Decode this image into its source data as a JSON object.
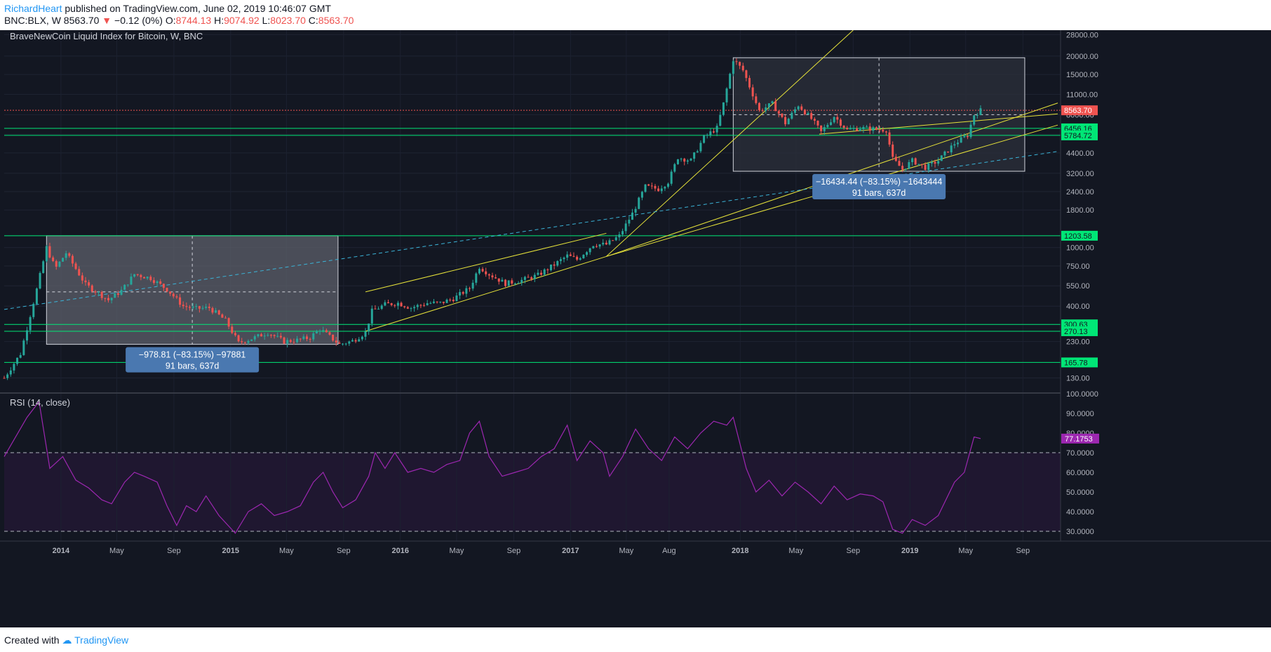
{
  "header": {
    "author": "RichardHeart",
    "published_text": "published on TradingView.com, June 02, 2019 10:46:07 GMT",
    "symbol": "BNC:BLX, W",
    "last": "8563.70",
    "change": "−0.12 (0%)",
    "o_label": "O:",
    "o_value": "8744.13",
    "h_label": "H:",
    "h_value": "9074.92",
    "l_label": "L:",
    "l_value": "8023.70",
    "c_label": "C:",
    "c_value": "8563.70"
  },
  "chart_title": "BraveNewCoin Liquid Index for Bitcoin, W, BNC",
  "rsi_title": "RSI (14, close)",
  "footer": {
    "created_with": "Created with",
    "brand": "TradingView"
  },
  "colors": {
    "background": "#131722",
    "up": "#26a69a",
    "down": "#ef5350",
    "support": "#00e676",
    "trend": "#e6e23a",
    "rsi": "#9c27b0",
    "dashed_trend": "#3bb4d8"
  },
  "chart_data": [
    {
      "type": "candlestick",
      "title": "BraveNewCoin Liquid Index for Bitcoin, W, BNC",
      "scale": "log",
      "x_range": [
        "2013-09-01",
        "2019-11-15"
      ],
      "y_ticks": [
        130,
        230,
        300,
        400,
        550,
        750,
        1000,
        1200,
        1800,
        2400,
        3200,
        4400,
        5900,
        8000,
        11000,
        15000,
        20000,
        28000
      ],
      "x_ticks": [
        "2014",
        "May",
        "Sep",
        "2015",
        "May",
        "Sep",
        "2016",
        "May",
        "Sep",
        "2017",
        "May",
        "Aug",
        "2018",
        "May",
        "Sep",
        "2019",
        "May",
        "Sep"
      ],
      "close_series": [
        [
          "2013-09-01",
          130
        ],
        [
          "2013-10-06",
          190
        ],
        [
          "2013-11-10",
          520
        ],
        [
          "2013-12-01",
          1000
        ],
        [
          "2013-12-20",
          720
        ],
        [
          "2014-01-12",
          920
        ],
        [
          "2014-02-23",
          560
        ],
        [
          "2014-03-23",
          490
        ],
        [
          "2014-04-13",
          440
        ],
        [
          "2014-05-11",
          510
        ],
        [
          "2014-06-08",
          660
        ],
        [
          "2014-07-13",
          620
        ],
        [
          "2014-08-17",
          520
        ],
        [
          "2014-09-21",
          400
        ],
        [
          "2014-10-19",
          385
        ],
        [
          "2014-11-16",
          390
        ],
        [
          "2014-12-21",
          320
        ],
        [
          "2015-01-18",
          225
        ],
        [
          "2015-02-22",
          245
        ],
        [
          "2015-03-22",
          265
        ],
        [
          "2015-04-26",
          230
        ],
        [
          "2015-05-24",
          235
        ],
        [
          "2015-06-21",
          245
        ],
        [
          "2015-07-12",
          280
        ],
        [
          "2015-08-23",
          220
        ],
        [
          "2015-09-20",
          232
        ],
        [
          "2015-10-18",
          265
        ],
        [
          "2015-11-01",
          370
        ],
        [
          "2015-11-29",
          410
        ],
        [
          "2015-12-27",
          420
        ],
        [
          "2016-01-24",
          390
        ],
        [
          "2016-02-28",
          420
        ],
        [
          "2016-03-27",
          420
        ],
        [
          "2016-04-24",
          450
        ],
        [
          "2016-05-29",
          530
        ],
        [
          "2016-06-19",
          740
        ],
        [
          "2016-07-10",
          660
        ],
        [
          "2016-08-14",
          570
        ],
        [
          "2016-09-18",
          600
        ],
        [
          "2016-10-23",
          650
        ],
        [
          "2016-11-20",
          740
        ],
        [
          "2016-12-25",
          880
        ],
        [
          "2017-01-15",
          830
        ],
        [
          "2017-02-19",
          1050
        ],
        [
          "2017-03-19",
          1050
        ],
        [
          "2017-04-16",
          1200
        ],
        [
          "2017-05-14",
          1700
        ],
        [
          "2017-06-11",
          2600
        ],
        [
          "2017-07-09",
          2500
        ],
        [
          "2017-07-30",
          2800
        ],
        [
          "2017-08-20",
          4100
        ],
        [
          "2017-09-17",
          3900
        ],
        [
          "2017-10-15",
          5600
        ],
        [
          "2017-11-12",
          6500
        ],
        [
          "2017-11-26",
          9500
        ],
        [
          "2017-12-17",
          19000
        ],
        [
          "2018-01-07",
          16000
        ],
        [
          "2018-01-28",
          11000
        ],
        [
          "2018-02-11",
          8500
        ],
        [
          "2018-03-11",
          9500
        ],
        [
          "2018-04-08",
          7000
        ],
        [
          "2018-05-06",
          9300
        ],
        [
          "2018-06-03",
          7500
        ],
        [
          "2018-06-24",
          6100
        ],
        [
          "2018-07-22",
          7800
        ],
        [
          "2018-08-19",
          6300
        ],
        [
          "2018-09-16",
          6500
        ],
        [
          "2018-10-14",
          6400
        ],
        [
          "2018-11-11",
          6300
        ],
        [
          "2018-11-25",
          4000
        ],
        [
          "2018-12-16",
          3400
        ],
        [
          "2019-01-06",
          3900
        ],
        [
          "2019-02-03",
          3500
        ],
        [
          "2019-03-03",
          3900
        ],
        [
          "2019-04-07",
          5100
        ],
        [
          "2019-05-05",
          5800
        ],
        [
          "2019-05-19",
          8000
        ],
        [
          "2019-06-02",
          8563.7
        ]
      ],
      "price_labels": [
        {
          "label": "8563.70",
          "value": 8563.7,
          "color": "#ef5350"
        },
        {
          "label": "6456.16",
          "value": 6456.16,
          "color": "#00e676"
        },
        {
          "label": "5784.72",
          "value": 5784.72,
          "color": "#00e676"
        },
        {
          "label": "1203.58",
          "value": 1203.58,
          "color": "#00e676"
        },
        {
          "label": "300.63",
          "value": 300.63,
          "color": "#00e676"
        },
        {
          "label": "270.13",
          "value": 270.13,
          "color": "#00e676"
        },
        {
          "label": "165.78",
          "value": 165.78,
          "color": "#00e676"
        }
      ],
      "hidden_label": "8000.00",
      "measure_boxes": [
        {
          "from": [
            "2013-12-01",
            1203.58
          ],
          "to": [
            "2015-08-20",
            220
          ],
          "mid": 500,
          "line1": "−978.81 (−83.15%) −97881",
          "line2": "91 bars, 637d"
        },
        {
          "from": [
            "2017-12-17",
            19500
          ],
          "to": [
            "2019-09-05",
            3300
          ],
          "mid": 8000,
          "line1": "−16434.44 (−83.15%) −1643444",
          "line2": "91 bars, 637d"
        }
      ],
      "trend_lines": [
        {
          "style": "solid",
          "from": [
            "2015-10-18",
            500
          ],
          "to": [
            "2017-03-19",
            1250
          ]
        },
        {
          "style": "solid",
          "from": [
            "2015-10-18",
            270
          ],
          "to": [
            "2017-03-19",
            870
          ]
        },
        {
          "style": "solid",
          "from": [
            "2017-03-19",
            870
          ],
          "to": [
            "2018-09-01",
            30000
          ]
        },
        {
          "style": "solid",
          "from": [
            "2017-03-19",
            870
          ],
          "to": [
            "2019-11-15",
            9600
          ]
        },
        {
          "style": "solid",
          "from": [
            "2017-03-19",
            870
          ],
          "to": [
            "2019-11-15",
            6800
          ]
        },
        {
          "style": "solid",
          "from": [
            "2018-06-20",
            5900
          ],
          "to": [
            "2019-11-15",
            8100
          ]
        },
        {
          "style": "dashed",
          "from": [
            "2013-09-01",
            380
          ],
          "to": [
            "2019-11-15",
            4500
          ]
        }
      ]
    },
    {
      "type": "line",
      "title": "RSI (14, close)",
      "current_label": "77.1753",
      "ylim": [
        25,
        100
      ],
      "y_ticks": [
        30,
        40,
        50,
        60,
        70,
        80,
        90,
        100
      ],
      "bands": [
        30,
        70
      ],
      "series": [
        [
          "2013-09-01",
          68
        ],
        [
          "2013-10-20",
          88
        ],
        [
          "2013-11-15",
          96
        ],
        [
          "2013-12-08",
          62
        ],
        [
          "2014-01-05",
          68
        ],
        [
          "2014-02-02",
          56
        ],
        [
          "2014-03-02",
          52
        ],
        [
          "2014-03-30",
          46
        ],
        [
          "2014-04-20",
          44
        ],
        [
          "2014-05-18",
          55
        ],
        [
          "2014-06-08",
          60
        ],
        [
          "2014-06-29",
          58
        ],
        [
          "2014-07-27",
          55
        ],
        [
          "2014-08-17",
          43
        ],
        [
          "2014-09-07",
          33
        ],
        [
          "2014-09-28",
          43
        ],
        [
          "2014-10-19",
          40
        ],
        [
          "2014-11-09",
          48
        ],
        [
          "2014-12-07",
          38
        ],
        [
          "2015-01-11",
          29
        ],
        [
          "2015-02-08",
          40
        ],
        [
          "2015-03-08",
          44
        ],
        [
          "2015-04-05",
          38
        ],
        [
          "2015-05-03",
          40
        ],
        [
          "2015-05-31",
          43
        ],
        [
          "2015-06-28",
          55
        ],
        [
          "2015-07-19",
          60
        ],
        [
          "2015-08-09",
          50
        ],
        [
          "2015-08-30",
          42
        ],
        [
          "2015-09-27",
          46
        ],
        [
          "2015-10-25",
          58
        ],
        [
          "2015-11-08",
          70
        ],
        [
          "2015-11-29",
          62
        ],
        [
          "2015-12-20",
          70
        ],
        [
          "2016-01-17",
          60
        ],
        [
          "2016-02-14",
          62
        ],
        [
          "2016-03-13",
          60
        ],
        [
          "2016-04-10",
          64
        ],
        [
          "2016-05-08",
          66
        ],
        [
          "2016-05-29",
          80
        ],
        [
          "2016-06-19",
          86
        ],
        [
          "2016-07-10",
          68
        ],
        [
          "2016-08-07",
          58
        ],
        [
          "2016-09-04",
          60
        ],
        [
          "2016-10-02",
          62
        ],
        [
          "2016-10-30",
          68
        ],
        [
          "2016-11-27",
          72
        ],
        [
          "2016-12-25",
          84
        ],
        [
          "2017-01-15",
          66
        ],
        [
          "2017-02-12",
          76
        ],
        [
          "2017-03-12",
          70
        ],
        [
          "2017-03-26",
          58
        ],
        [
          "2017-04-23",
          68
        ],
        [
          "2017-05-21",
          82
        ],
        [
          "2017-06-18",
          72
        ],
        [
          "2017-07-16",
          66
        ],
        [
          "2017-08-13",
          78
        ],
        [
          "2017-09-10",
          72
        ],
        [
          "2017-10-08",
          80
        ],
        [
          "2017-11-05",
          86
        ],
        [
          "2017-12-03",
          84
        ],
        [
          "2017-12-17",
          88
        ],
        [
          "2018-01-14",
          62
        ],
        [
          "2018-02-04",
          50
        ],
        [
          "2018-03-04",
          56
        ],
        [
          "2018-04-01",
          48
        ],
        [
          "2018-04-29",
          55
        ],
        [
          "2018-05-27",
          50
        ],
        [
          "2018-06-24",
          44
        ],
        [
          "2018-07-22",
          53
        ],
        [
          "2018-08-19",
          46
        ],
        [
          "2018-09-16",
          49
        ],
        [
          "2018-10-14",
          48
        ],
        [
          "2018-11-04",
          45
        ],
        [
          "2018-11-25",
          31
        ],
        [
          "2018-12-16",
          29
        ],
        [
          "2019-01-06",
          36
        ],
        [
          "2019-02-03",
          33
        ],
        [
          "2019-03-03",
          38
        ],
        [
          "2019-04-07",
          55
        ],
        [
          "2019-04-28",
          60
        ],
        [
          "2019-05-19",
          78
        ],
        [
          "2019-06-02",
          77.1753
        ]
      ]
    }
  ]
}
